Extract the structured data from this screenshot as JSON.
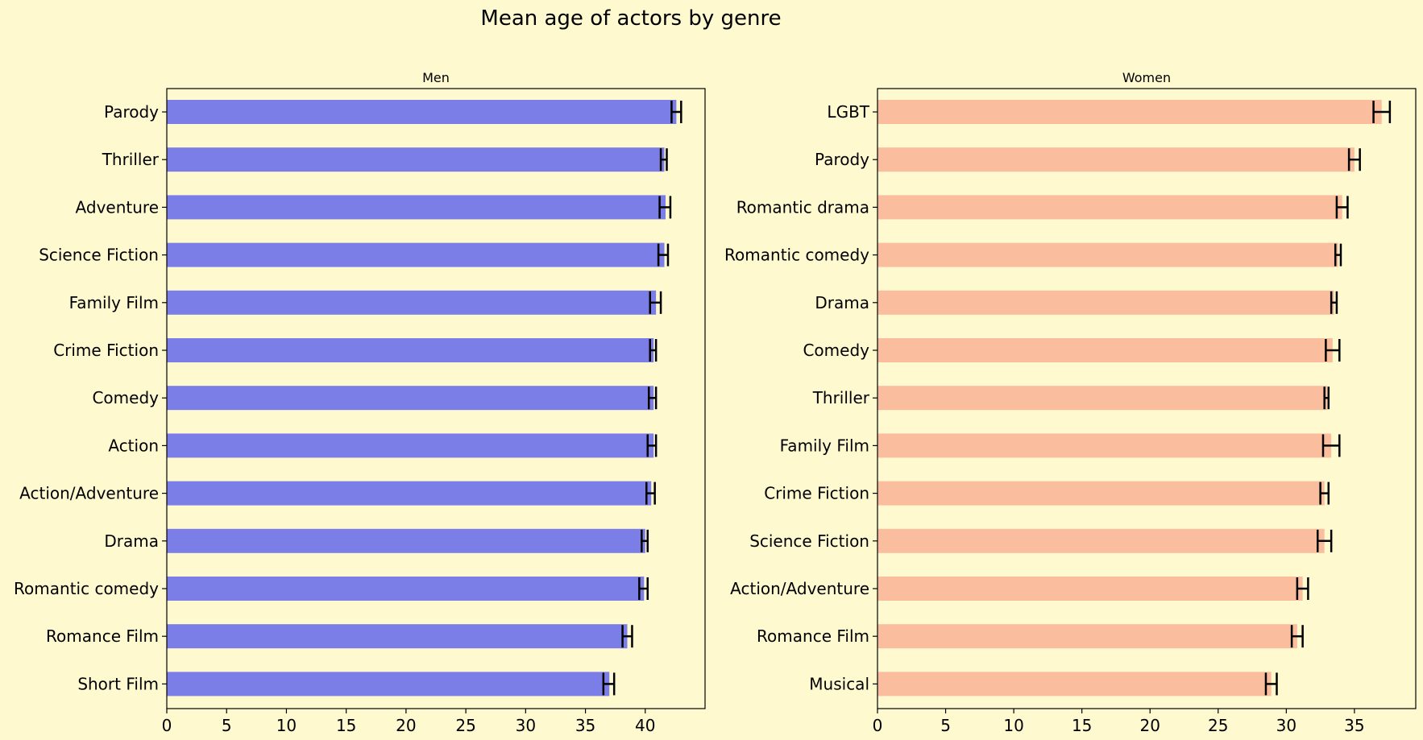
{
  "chart_data": [
    {
      "type": "bar",
      "orientation": "horizontal",
      "title": "Mean age of actors by genre",
      "subtitle": "Men",
      "color": "#7b7ee6",
      "categories": [
        "Parody",
        "Thriller",
        "Adventure",
        "Science Fiction",
        "Family Film",
        "Crime Fiction",
        "Comedy",
        "Action",
        "Action/Adventure",
        "Drama",
        "Romantic comedy",
        "Romance Film",
        "Short Film"
      ],
      "values": [
        42.6,
        41.6,
        41.7,
        41.6,
        40.9,
        40.7,
        40.7,
        40.7,
        40.5,
        40.0,
        39.9,
        38.5,
        37.0
      ],
      "err_low": [
        42.2,
        41.3,
        41.2,
        41.1,
        40.4,
        40.4,
        40.3,
        40.2,
        40.1,
        39.7,
        39.5,
        38.1,
        36.5
      ],
      "err_high": [
        43.0,
        41.8,
        42.1,
        41.9,
        41.3,
        40.9,
        40.9,
        40.9,
        40.8,
        40.2,
        40.2,
        38.9,
        37.4
      ],
      "xticks": [
        0,
        5,
        10,
        15,
        20,
        25,
        30,
        35,
        40
      ],
      "xlim": [
        0,
        45
      ]
    },
    {
      "type": "bar",
      "orientation": "horizontal",
      "subtitle": "Women",
      "color": "#fabd9e",
      "categories": [
        "LGBT",
        "Parody",
        "Romantic drama",
        "Romantic comedy",
        "Drama",
        "Comedy",
        "Thriller",
        "Family Film",
        "Crime Fiction",
        "Science Fiction",
        "Action/Adventure",
        "Romance Film",
        "Musical"
      ],
      "values": [
        37.0,
        35.0,
        34.1,
        33.8,
        33.5,
        33.4,
        33.0,
        33.3,
        32.8,
        32.8,
        31.2,
        30.8,
        28.9
      ],
      "err_low": [
        36.4,
        34.6,
        33.7,
        33.6,
        33.3,
        32.9,
        32.8,
        32.7,
        32.5,
        32.3,
        30.8,
        30.4,
        28.5
      ],
      "err_high": [
        37.6,
        35.4,
        34.5,
        34.0,
        33.7,
        33.9,
        33.1,
        33.9,
        33.1,
        33.3,
        31.6,
        31.2,
        29.3
      ],
      "xticks": [
        0,
        5,
        10,
        15,
        20,
        25,
        30,
        35
      ],
      "xlim": [
        0,
        39.5
      ]
    }
  ]
}
